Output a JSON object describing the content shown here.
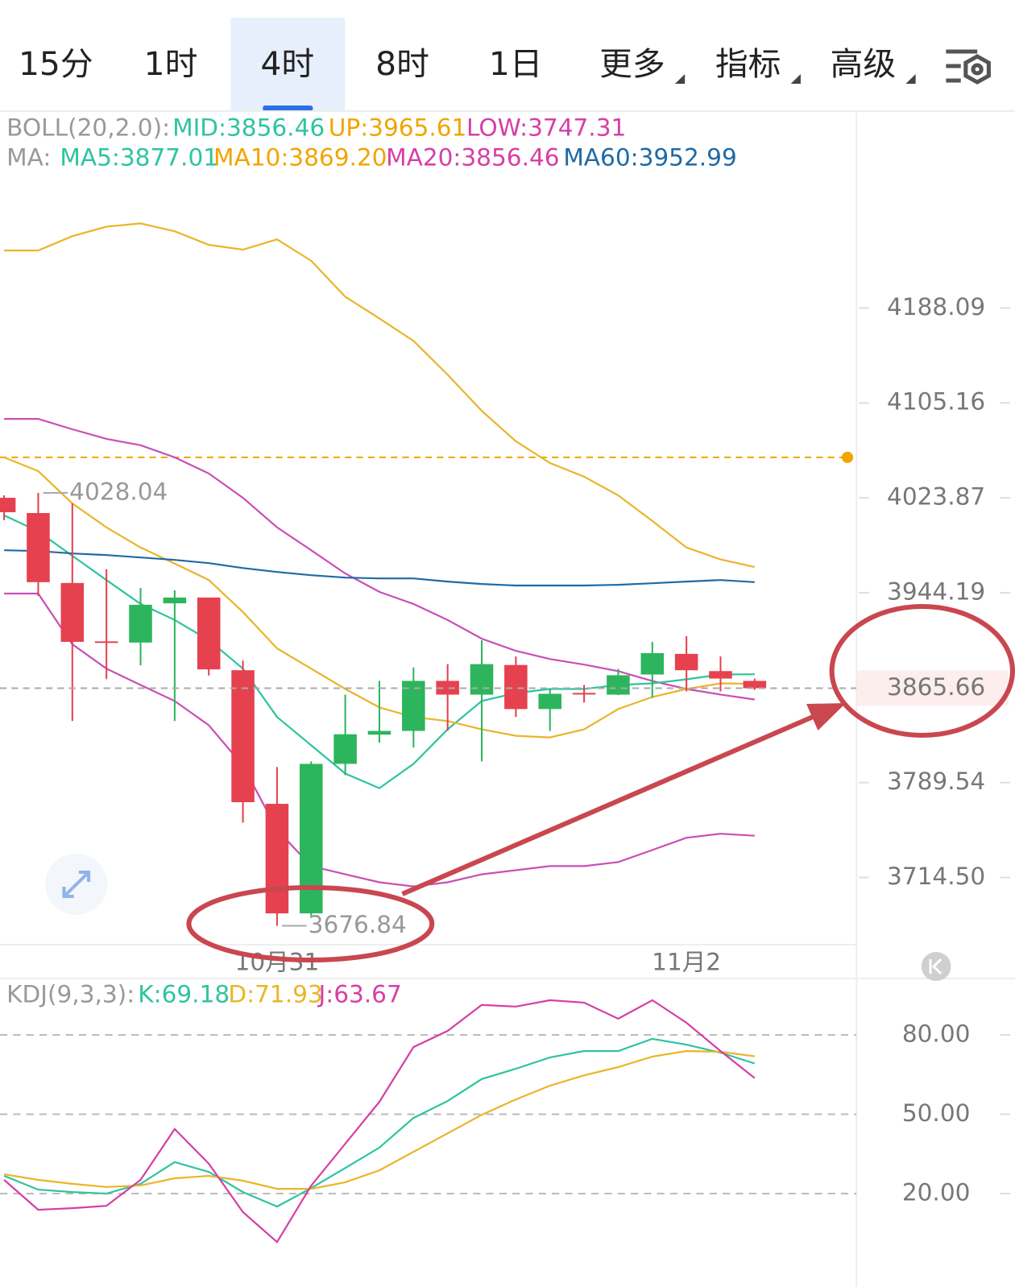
{
  "tabs": [
    "15分",
    "1时",
    "4时",
    "8时",
    "1日",
    "更多",
    "指标",
    "高级"
  ],
  "active_tab": 2,
  "chart_data": [
    {
      "type": "candlestick",
      "legend_title": "BOLL(20,2.0):",
      "legend": [
        "MID:3856.46",
        "UP:3965.61",
        "LOW:3747.31"
      ],
      "legend_colors": [
        "#2ec4a0",
        "#f0a500",
        "#d63fa6"
      ],
      "ma_title": "MA:",
      "ma_legend": [
        "MA5:3877.01",
        "MA10:3869.20",
        "MA20:3856.46",
        "MA60:3952.99"
      ],
      "ma_colors": [
        "#2ec4a0",
        "#f0a500",
        "#d63fa6",
        "#1f6aa5"
      ],
      "categories": [
        null,
        null,
        null,
        null,
        null,
        null,
        null,
        null,
        "10月31",
        null,
        null,
        null,
        null,
        null,
        null,
        null,
        null,
        null,
        null,
        null,
        "11月2",
        null,
        null
      ],
      "open": [
        4023.9,
        4011.0,
        3952.3,
        3904.0,
        3903.0,
        3935.4,
        3940.2,
        3880.3,
        3772.6,
        3686.5,
        3804.5,
        3828.0,
        3831.0,
        3871.6,
        3860.4,
        3884.6,
        3848.7,
        3861.8,
        3860.4,
        3876.8,
        3893.7,
        3879.6,
        3871.6
      ],
      "high": [
        4026.0,
        4028.04,
        4019.1,
        3963.8,
        3948.2,
        3946.2,
        3940.2,
        3888.3,
        3802.0,
        3806.5,
        3860.4,
        3871.6,
        3882.6,
        3885.3,
        3904.9,
        3891.6,
        3865.0,
        3868.3,
        3881.4,
        3903.6,
        3908.3,
        3891.6,
        3873.5
      ],
      "low": [
        4005.0,
        3941.5,
        3839.0,
        3873.0,
        3884.3,
        3839.0,
        3876.0,
        3757.6,
        3676.84,
        3683.0,
        3795.4,
        3821.5,
        3817.6,
        3831.0,
        3806.5,
        3842.3,
        3831.0,
        3854.0,
        3860.0,
        3857.8,
        3863.0,
        3863.0,
        3864.3
      ],
      "close": [
        4011.7,
        3953.0,
        3903.6,
        3903.0,
        3934.2,
        3940.2,
        3881.0,
        3773.9,
        3686.5,
        3804.5,
        3828.3,
        3831.0,
        3871.6,
        3860.4,
        3885.3,
        3848.7,
        3861.1,
        3861.0,
        3876.2,
        3894.3,
        3880.3,
        3873.5,
        3865.66
      ],
      "up_color": "#2db55d",
      "down_color": "#e5414f",
      "series": [
        {
          "color": "#e9b52a",
          "values": [
            4239.2,
            4239.2,
            4252.0,
            4260.5,
            4263.4,
            4256.3,
            4244.2,
            4239.9,
            4249.1,
            4230.0,
            4198.0,
            4178.9,
            4159.2,
            4129.7,
            4098.3,
            4072.1,
            4053.5,
            4041.8,
            4026.0,
            4004.3,
            3982.0,
            3972.0,
            3965.61
          ]
        },
        {
          "color": "#c94fb6",
          "values": [
            4091.4,
            4091.4,
            4082.4,
            4074.2,
            4068.7,
            4058.3,
            4044.6,
            4023.9,
            3998.9,
            3979.7,
            3960.2,
            3944.9,
            3934.9,
            3921.6,
            3906.2,
            3896.2,
            3889.5,
            3884.9,
            3879.6,
            3871.5,
            3865.0,
            3860.5,
            3856.46
          ]
        },
        {
          "color": "#c94fb6",
          "values": [
            3943.5,
            3943.5,
            3901.6,
            3881.6,
            3868.3,
            3855.2,
            3835.6,
            3803.2,
            3752.0,
            3723.4,
            3717.0,
            3710.7,
            3707.5,
            3710.7,
            3717.0,
            3720.2,
            3723.4,
            3723.4,
            3726.6,
            3736.1,
            3745.7,
            3748.9,
            3747.31
          ]
        },
        {
          "color": "#2ec4a0",
          "values": [
            4009.0,
            3995.5,
            3975.0,
            3954.8,
            3934.9,
            3921.6,
            3905.0,
            3881.6,
            3842.2,
            3819.4,
            3796.7,
            3785.1,
            3804.5,
            3832.3,
            3855.2,
            3861.7,
            3865.0,
            3865.0,
            3868.3,
            3869.6,
            3872.9,
            3876.8,
            3877.01
          ]
        },
        {
          "color": "#e9b52a",
          "values": [
            4058.3,
            4046.6,
            4019.1,
            3998.9,
            3982.0,
            3968.5,
            3954.8,
            3928.2,
            3898.2,
            3881.6,
            3865.0,
            3850.0,
            3842.2,
            3839.0,
            3832.3,
            3827.1,
            3825.8,
            3832.3,
            3848.7,
            3858.5,
            3865.0,
            3869.6,
            3869.2
          ]
        },
        {
          "color": "#1f6aa5",
          "values": [
            3979.7,
            3979.0,
            3977.0,
            3975.6,
            3973.6,
            3971.6,
            3968.9,
            3964.8,
            3961.5,
            3958.8,
            3956.8,
            3956.1,
            3956.1,
            3953.5,
            3951.5,
            3950.2,
            3950.2,
            3950.2,
            3950.8,
            3952.1,
            3953.5,
            3954.8,
            3952.99
          ]
        }
      ],
      "ylim": [
        3661,
        4364
      ],
      "log_scale": true,
      "yticks": [
        4188.09,
        4105.16,
        4023.87,
        3944.19,
        3789.54,
        {
          "value": 3714.5,
          "label": "3714.50"
        }
      ],
      "last_price": 3865.66,
      "last_price_color": "#e5414f",
      "alert_line": 4058.3,
      "alert_color": "#f0a500"
    },
    {
      "type": "line",
      "legend_title": "KDJ(9,3,3):",
      "legend": [
        "K:69.18",
        "D:71.93",
        "J:63.67"
      ],
      "series": [
        {
          "color": "#2ec4a0",
          "values": [
            26.7,
            21.5,
            20.6,
            20.0,
            23.7,
            31.9,
            28.2,
            20.6,
            15.1,
            22.1,
            29.7,
            37.4,
            48.6,
            55.0,
            63.3,
            67.2,
            71.5,
            73.9,
            73.9,
            78.5,
            76.3,
            73.3,
            69.18
          ]
        },
        {
          "color": "#e9b52a",
          "values": [
            27.3,
            25.2,
            23.7,
            22.5,
            23.1,
            25.8,
            26.7,
            24.9,
            21.8,
            21.8,
            24.3,
            28.8,
            35.8,
            42.8,
            49.8,
            55.6,
            60.8,
            64.7,
            67.8,
            71.8,
            73.9,
            73.6,
            71.93
          ]
        },
        {
          "color": "#d63fa6",
          "values": [
            25.2,
            13.9,
            14.5,
            15.4,
            25.2,
            44.4,
            31.3,
            13.0,
            1.7,
            23.0,
            38.9,
            54.7,
            75.4,
            81.5,
            91.3,
            90.7,
            93.1,
            92.2,
            86.1,
            93.1,
            84.6,
            73.9,
            63.67
          ]
        }
      ],
      "ylim": [
        -15.3,
        101.3
      ],
      "yticks": [
        {
          "value": 80,
          "label": "80.00"
        },
        {
          "value": 50,
          "label": "50.00"
        },
        {
          "value": 20,
          "label": "20.00"
        }
      ],
      "grid": true
    }
  ]
}
